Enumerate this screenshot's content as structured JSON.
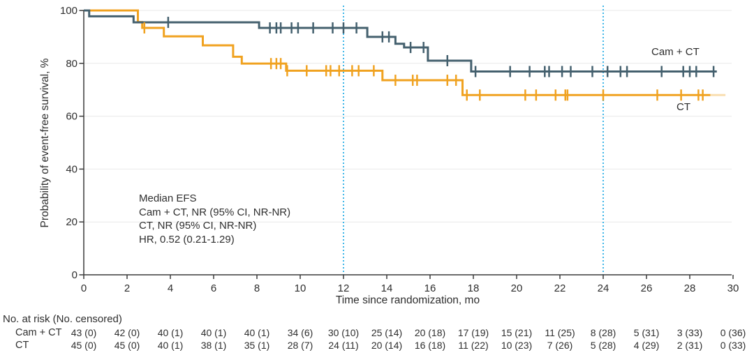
{
  "chart_data": {
    "type": "line",
    "subtype": "kaplan-meier-step-curve",
    "title": "",
    "xlabel": "Time since randomization, mo",
    "ylabel": "Probability of event-free survival, %",
    "xlim": [
      0,
      30
    ],
    "ylim": [
      0,
      100
    ],
    "x_ticks": [
      0,
      2,
      4,
      6,
      8,
      10,
      12,
      14,
      16,
      18,
      20,
      22,
      24,
      26,
      28,
      30
    ],
    "y_ticks": [
      0,
      20,
      40,
      60,
      80,
      100
    ],
    "grid": "horizontal-only",
    "reference_lines_x": [
      12,
      24
    ],
    "legend_position": "end-of-curve labels",
    "annotation_lines": [
      "Median EFS",
      "Cam + CT, NR (95% CI, NR-NR)",
      "CT, NR (95% CI, NR-NR)",
      "HR, 0.52 (0.21-1.29)"
    ],
    "series": [
      {
        "name": "Cam + CT",
        "color": "#44606e",
        "end_time": 29.25,
        "steps": [
          [
            0,
            100
          ],
          [
            0.25,
            97.8
          ],
          [
            2.3,
            95.5
          ],
          [
            8.1,
            93.4
          ],
          [
            13.1,
            90.0
          ],
          [
            14.4,
            87.4
          ],
          [
            14.8,
            86.0
          ],
          [
            15.9,
            81.0
          ],
          [
            17.9,
            76.9
          ]
        ],
        "censor_marks": [
          [
            3.9,
            95.5
          ],
          [
            8.6,
            93.4
          ],
          [
            8.9,
            93.4
          ],
          [
            9.1,
            93.4
          ],
          [
            9.6,
            93.4
          ],
          [
            9.9,
            93.4
          ],
          [
            10.6,
            93.4
          ],
          [
            11.5,
            93.4
          ],
          [
            12.0,
            93.4
          ],
          [
            12.6,
            93.4
          ],
          [
            13.8,
            90.0
          ],
          [
            14.1,
            90.0
          ],
          [
            15.1,
            86.0
          ],
          [
            15.7,
            86.0
          ],
          [
            16.8,
            81.0
          ],
          [
            18.1,
            76.9
          ],
          [
            19.7,
            76.9
          ],
          [
            20.6,
            76.9
          ],
          [
            21.3,
            76.9
          ],
          [
            21.5,
            76.9
          ],
          [
            22.1,
            76.9
          ],
          [
            22.5,
            76.9
          ],
          [
            23.5,
            76.9
          ],
          [
            24.2,
            76.9
          ],
          [
            24.8,
            76.9
          ],
          [
            25.1,
            76.9
          ],
          [
            26.7,
            76.9
          ],
          [
            27.7,
            76.9
          ],
          [
            28.0,
            76.9
          ],
          [
            28.3,
            76.9
          ],
          [
            29.1,
            76.9
          ]
        ]
      },
      {
        "name": "CT",
        "color": "#f0a220",
        "end_time": 28.95,
        "faded_tail": {
          "from": 28.95,
          "to": 29.65,
          "opacity": 0.35
        },
        "steps": [
          [
            0,
            100
          ],
          [
            2.5,
            95.6
          ],
          [
            2.7,
            93.4
          ],
          [
            3.7,
            90.2
          ],
          [
            5.5,
            86.8
          ],
          [
            6.9,
            82.5
          ],
          [
            7.3,
            79.9
          ],
          [
            9.35,
            77.2
          ],
          [
            13.8,
            73.6
          ],
          [
            17.5,
            68.0
          ]
        ],
        "censor_marks": [
          [
            2.8,
            93.4
          ],
          [
            8.65,
            79.9
          ],
          [
            8.9,
            79.9
          ],
          [
            9.1,
            79.9
          ],
          [
            9.4,
            77.2
          ],
          [
            10.3,
            77.2
          ],
          [
            11.2,
            77.2
          ],
          [
            11.4,
            77.2
          ],
          [
            11.8,
            77.2
          ],
          [
            12.4,
            77.2
          ],
          [
            12.7,
            77.2
          ],
          [
            13.4,
            77.2
          ],
          [
            14.4,
            73.6
          ],
          [
            15.2,
            73.6
          ],
          [
            15.4,
            73.6
          ],
          [
            16.8,
            73.6
          ],
          [
            17.2,
            73.6
          ],
          [
            17.7,
            68.0
          ],
          [
            18.3,
            68.0
          ],
          [
            20.4,
            68.0
          ],
          [
            20.9,
            68.0
          ],
          [
            21.8,
            68.0
          ],
          [
            22.25,
            68.0
          ],
          [
            22.35,
            68.0
          ],
          [
            24.0,
            68.0
          ],
          [
            26.5,
            68.0
          ],
          [
            27.6,
            68.0
          ],
          [
            28.4,
            68.0
          ],
          [
            28.6,
            68.0
          ]
        ]
      }
    ],
    "risk_table": {
      "header": "No. at risk (No. censored)",
      "times": [
        0,
        2,
        4,
        6,
        8,
        10,
        12,
        14,
        16,
        18,
        20,
        22,
        24,
        26,
        28,
        30
      ],
      "rows": [
        {
          "label": "Cam + CT",
          "values": [
            "43 (0)",
            "42 (0)",
            "40 (1)",
            "40 (1)",
            "40 (1)",
            "34 (6)",
            "30 (10)",
            "25 (14)",
            "20 (18)",
            "17 (19)",
            "15 (21)",
            "11 (25)",
            "8 (28)",
            "5 (31)",
            "3 (33)",
            "0 (36)"
          ]
        },
        {
          "label": "CT",
          "values": [
            "45 (0)",
            "45 (0)",
            "40 (1)",
            "38 (1)",
            "35 (1)",
            "28 (7)",
            "24 (11)",
            "20 (14)",
            "16 (18)",
            "11 (22)",
            "10 (23)",
            "7 (26)",
            "5 (28)",
            "4 (29)",
            "2 (31)",
            "0 (33)"
          ]
        }
      ]
    },
    "colors": {
      "cam_ct_curve": "#44606e",
      "ct_curve": "#f0a220",
      "reference_line": "#3eb6e8",
      "grid": "#e9e9e9",
      "axis": "#3a3a3a",
      "text": "#2e2e2e"
    }
  }
}
